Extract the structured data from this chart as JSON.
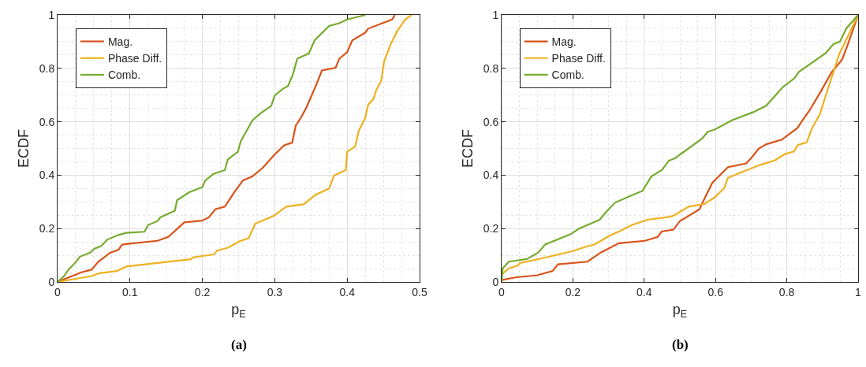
{
  "chart_data": [
    {
      "type": "line",
      "xlabel": "p$_{E}$",
      "ylabel": "ECDF",
      "annotations": [
        "(a)"
      ],
      "xlim": [
        0,
        0.5
      ],
      "xticks": [
        0,
        0.1,
        0.2,
        0.3,
        0.4,
        0.5
      ],
      "ylim": [
        0,
        1
      ],
      "yticks": [
        0,
        0.2,
        0.4,
        0.6,
        0.8,
        1
      ],
      "grid": true,
      "legend": "top left",
      "line_style": "solid",
      "marker": "none",
      "series": [
        {
          "name": "Mag.",
          "color": "#d95319",
          "x": [
            0,
            0.033,
            0.047,
            0.056,
            0.073,
            0.084,
            0.089,
            0.102,
            0.138,
            0.153,
            0.175,
            0.2,
            0.209,
            0.218,
            0.231,
            0.244,
            0.256,
            0.269,
            0.284,
            0.3,
            0.313,
            0.324,
            0.329,
            0.336,
            0.344,
            0.358,
            0.365,
            0.384,
            0.389,
            0.4,
            0.407,
            0.425,
            0.429,
            0.462,
            0.466
          ],
          "values": [
            0,
            0.036,
            0.046,
            0.075,
            0.11,
            0.12,
            0.14,
            0.144,
            0.154,
            0.169,
            0.223,
            0.23,
            0.242,
            0.272,
            0.282,
            0.336,
            0.38,
            0.395,
            0.429,
            0.478,
            0.512,
            0.522,
            0.586,
            0.615,
            0.655,
            0.743,
            0.792,
            0.802,
            0.836,
            0.861,
            0.905,
            0.934,
            0.949,
            0.983,
            1
          ]
        },
        {
          "name": "Phase Diff.",
          "color": "#edb120",
          "x": [
            0,
            0.047,
            0.058,
            0.082,
            0.095,
            0.184,
            0.187,
            0.216,
            0.22,
            0.236,
            0.251,
            0.264,
            0.273,
            0.298,
            0.316,
            0.34,
            0.356,
            0.375,
            0.382,
            0.398,
            0.4,
            0.411,
            0.416,
            0.425,
            0.429,
            0.436,
            0.44,
            0.447,
            0.451,
            0.46,
            0.469,
            0.48,
            0.489
          ],
          "values": [
            0,
            0.022,
            0.033,
            0.041,
            0.058,
            0.085,
            0.092,
            0.103,
            0.117,
            0.129,
            0.152,
            0.164,
            0.218,
            0.247,
            0.282,
            0.291,
            0.326,
            0.35,
            0.399,
            0.419,
            0.488,
            0.507,
            0.566,
            0.615,
            0.664,
            0.684,
            0.718,
            0.753,
            0.826,
            0.89,
            0.939,
            0.983,
            1
          ]
        },
        {
          "name": "Comb.",
          "color": "#77ac30",
          "x": [
            0,
            0.009,
            0.015,
            0.024,
            0.031,
            0.045,
            0.051,
            0.06,
            0.069,
            0.084,
            0.095,
            0.12,
            0.125,
            0.138,
            0.142,
            0.162,
            0.165,
            0.182,
            0.2,
            0.204,
            0.215,
            0.231,
            0.235,
            0.249,
            0.253,
            0.269,
            0.282,
            0.295,
            0.3,
            0.311,
            0.318,
            0.325,
            0.331,
            0.347,
            0.355,
            0.375,
            0.389,
            0.4,
            0.425
          ],
          "values": [
            0,
            0.022,
            0.046,
            0.071,
            0.095,
            0.11,
            0.125,
            0.134,
            0.159,
            0.176,
            0.184,
            0.188,
            0.213,
            0.228,
            0.242,
            0.267,
            0.306,
            0.336,
            0.355,
            0.38,
            0.404,
            0.419,
            0.458,
            0.488,
            0.527,
            0.605,
            0.635,
            0.659,
            0.699,
            0.723,
            0.733,
            0.777,
            0.836,
            0.856,
            0.905,
            0.959,
            0.969,
            0.983,
            1
          ]
        }
      ]
    },
    {
      "type": "line",
      "xlabel": "p$_{E}$",
      "ylabel": "ECDF",
      "annotations": [
        "(b)"
      ],
      "xlim": [
        0,
        1
      ],
      "xticks": [
        0,
        0.2,
        0.4,
        0.6,
        0.8,
        1
      ],
      "ylim": [
        0,
        1
      ],
      "yticks": [
        0,
        0.2,
        0.4,
        0.6,
        0.8,
        1
      ],
      "grid": true,
      "legend": "top left",
      "line_style": "solid",
      "marker": "none",
      "series": [
        {
          "name": "Mag.",
          "color": "#d95319",
          "x": [
            0,
            0.038,
            0.1,
            0.143,
            0.158,
            0.241,
            0.278,
            0.329,
            0.402,
            0.438,
            0.449,
            0.482,
            0.5,
            0.555,
            0.569,
            0.591,
            0.635,
            0.686,
            0.7,
            0.721,
            0.743,
            0.786,
            0.83,
            0.845,
            0.863,
            0.896,
            0.925,
            0.955,
            0.969,
            1
          ],
          "values": [
            0.007,
            0.017,
            0.025,
            0.041,
            0.066,
            0.076,
            0.11,
            0.145,
            0.154,
            0.169,
            0.189,
            0.196,
            0.228,
            0.272,
            0.312,
            0.371,
            0.43,
            0.444,
            0.464,
            0.499,
            0.516,
            0.533,
            0.577,
            0.607,
            0.641,
            0.715,
            0.784,
            0.833,
            0.882,
            1
          ]
        },
        {
          "name": "Phase Diff.",
          "color": "#edb120",
          "x": [
            0,
            0.02,
            0.045,
            0.052,
            0.118,
            0.198,
            0.231,
            0.26,
            0.304,
            0.329,
            0.365,
            0.409,
            0.467,
            0.482,
            0.525,
            0.569,
            0.598,
            0.624,
            0.635,
            0.671,
            0.729,
            0.766,
            0.795,
            0.82,
            0.831,
            0.856,
            0.871,
            0.892,
            0.911,
            0.947,
            1
          ],
          "values": [
            0.027,
            0.051,
            0.061,
            0.071,
            0.09,
            0.115,
            0.13,
            0.14,
            0.174,
            0.189,
            0.213,
            0.233,
            0.243,
            0.248,
            0.282,
            0.292,
            0.317,
            0.351,
            0.39,
            0.41,
            0.44,
            0.455,
            0.479,
            0.489,
            0.513,
            0.523,
            0.577,
            0.626,
            0.705,
            0.853,
            1
          ]
        },
        {
          "name": "Comb.",
          "color": "#77ac30",
          "x": [
            0,
            0.003,
            0.02,
            0.071,
            0.103,
            0.122,
            0.194,
            0.216,
            0.275,
            0.293,
            0.318,
            0.369,
            0.395,
            0.42,
            0.45,
            0.469,
            0.487,
            0.563,
            0.578,
            0.6,
            0.647,
            0.706,
            0.742,
            0.789,
            0.822,
            0.833,
            0.909,
            0.931,
            0.949,
            0.967,
            1
          ],
          "values": [
            0,
            0.051,
            0.076,
            0.086,
            0.11,
            0.14,
            0.179,
            0.199,
            0.233,
            0.262,
            0.297,
            0.327,
            0.341,
            0.395,
            0.42,
            0.454,
            0.464,
            0.538,
            0.562,
            0.572,
            0.606,
            0.636,
            0.66,
            0.73,
            0.764,
            0.786,
            0.857,
            0.891,
            0.9,
            0.95,
            1
          ]
        }
      ]
    }
  ]
}
